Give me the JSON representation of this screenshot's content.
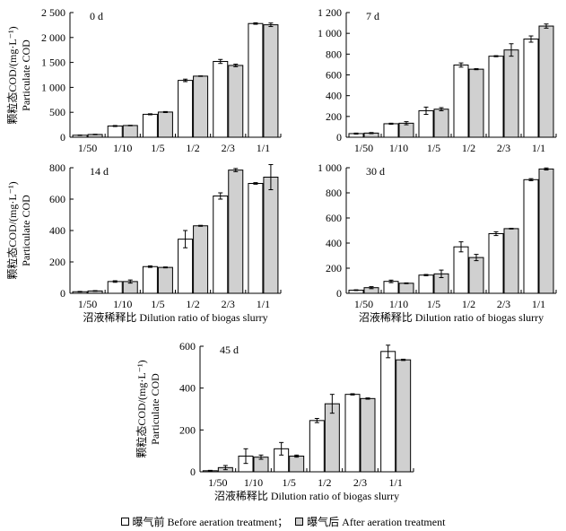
{
  "chart_data": [
    {
      "type": "bar",
      "panel_label": "0 d",
      "categories": [
        "1/50",
        "1/10",
        "1/5",
        "1/2",
        "2/3",
        "1/1"
      ],
      "ylim": [
        0,
        2500
      ],
      "yticks": [
        0,
        500,
        1000,
        1500,
        2000,
        2500
      ],
      "ytick_labels": [
        "0",
        "500",
        "1 000",
        "1 500",
        "2 000",
        "2 500"
      ],
      "ylabel_cn": "颗粒态COD/(mg·L⁻¹)",
      "ylabel_en": "Particulate COD",
      "xlabel": "",
      "series": [
        {
          "name": "曝气前 Before aeration treatment",
          "values": [
            40,
            225,
            460,
            1140,
            1520,
            2280
          ],
          "errors": [
            5,
            10,
            10,
            25,
            40,
            15
          ]
        },
        {
          "name": "曝气后 After aeration treatment",
          "values": [
            55,
            235,
            505,
            1225,
            1440,
            2255
          ],
          "errors": [
            5,
            5,
            10,
            5,
            25,
            35
          ]
        }
      ]
    },
    {
      "type": "bar",
      "panel_label": "7 d",
      "categories": [
        "1/50",
        "1/10",
        "1/5",
        "1/2",
        "2/3",
        "1/1"
      ],
      "ylim": [
        0,
        1200
      ],
      "yticks": [
        0,
        200,
        400,
        600,
        800,
        1000,
        1200
      ],
      "ytick_labels": [
        "0",
        "200",
        "400",
        "600",
        "800",
        "1 000",
        "1 200"
      ],
      "xlabel": "",
      "series": [
        {
          "name": "曝气前 Before aeration treatment",
          "values": [
            35,
            130,
            255,
            695,
            780,
            945
          ],
          "errors": [
            5,
            5,
            35,
            20,
            5,
            30
          ]
        },
        {
          "name": "曝气后 After aeration treatment",
          "values": [
            40,
            135,
            270,
            655,
            840,
            1070
          ],
          "errors": [
            5,
            15,
            15,
            5,
            60,
            20
          ]
        }
      ]
    },
    {
      "type": "bar",
      "panel_label": "14 d",
      "categories": [
        "1/50",
        "1/10",
        "1/5",
        "1/2",
        "2/3",
        "1/1"
      ],
      "ylim": [
        0,
        800
      ],
      "yticks": [
        0,
        200,
        400,
        600,
        800
      ],
      "ytick_labels": [
        "0",
        "200",
        "400",
        "600",
        "800"
      ],
      "ylabel_cn": "颗粒态COD/(mg·L⁻¹)",
      "ylabel_en": "Particulate COD",
      "xlabel": "沼液稀释比 Dilution ratio of biogas slurry",
      "series": [
        {
          "name": "曝气前 Before aeration treatment",
          "values": [
            10,
            75,
            170,
            345,
            620,
            700
          ],
          "errors": [
            2,
            5,
            5,
            55,
            20,
            5
          ]
        },
        {
          "name": "曝气后 After aeration treatment",
          "values": [
            15,
            75,
            165,
            430,
            785,
            740
          ],
          "errors": [
            2,
            10,
            3,
            3,
            10,
            80
          ]
        }
      ]
    },
    {
      "type": "bar",
      "panel_label": "30 d",
      "categories": [
        "1/50",
        "1/10",
        "1/5",
        "1/2",
        "2/3",
        "1/1"
      ],
      "ylim": [
        0,
        1000
      ],
      "yticks": [
        0,
        200,
        400,
        600,
        800,
        1000
      ],
      "ytick_labels": [
        "0",
        "200",
        "400",
        "600",
        "800",
        "1 000"
      ],
      "xlabel": "沼液稀释比 Dilution ratio of biogas slurry",
      "series": [
        {
          "name": "曝气前 Before aeration treatment",
          "values": [
            25,
            95,
            145,
            370,
            475,
            905
          ],
          "errors": [
            3,
            10,
            5,
            40,
            15,
            8
          ]
        },
        {
          "name": "曝气后 After aeration treatment",
          "values": [
            45,
            80,
            155,
            285,
            515,
            990
          ],
          "errors": [
            8,
            3,
            30,
            25,
            3,
            8
          ]
        }
      ]
    },
    {
      "type": "bar",
      "panel_label": "45 d",
      "categories": [
        "1/50",
        "1/10",
        "1/5",
        "1/2",
        "2/3",
        "1/1"
      ],
      "ylim": [
        0,
        600
      ],
      "yticks": [
        0,
        200,
        400,
        600
      ],
      "ytick_labels": [
        "0",
        "200",
        "400",
        "600"
      ],
      "ylabel_cn": "颗粒态COD/(mg·L⁻¹)",
      "ylabel_en": "Particulate COD",
      "xlabel": "沼液稀释比 Dilution ratio of biogas slurry",
      "series": [
        {
          "name": "曝气前 Before aeration treatment",
          "values": [
            5,
            75,
            110,
            245,
            370,
            575
          ],
          "errors": [
            2,
            35,
            30,
            10,
            3,
            30
          ]
        },
        {
          "name": "曝气后 After aeration treatment",
          "values": [
            20,
            70,
            75,
            325,
            350,
            535
          ],
          "errors": [
            10,
            10,
            5,
            45,
            3,
            3
          ]
        }
      ]
    }
  ],
  "legend": {
    "before_label": "曝气前 Before aeration treatment；",
    "after_label": "曝气后 After aeration treatment"
  },
  "colors": {
    "before_fill": "#ffffff",
    "after_fill": "#d0d0d0",
    "stroke": "#000000"
  }
}
